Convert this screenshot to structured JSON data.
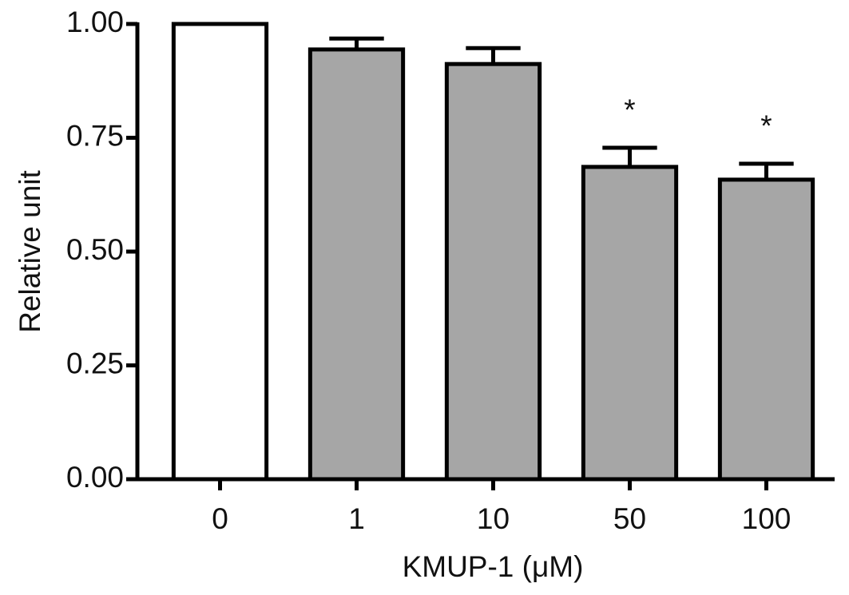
{
  "chart_data": {
    "type": "bar",
    "y_label": "Relative unit",
    "x_label": "KMUP-1 (μM)",
    "categories": [
      "0",
      "1",
      "10",
      "50",
      "100"
    ],
    "values": [
      1.0,
      0.944,
      0.912,
      0.686,
      0.658
    ],
    "errors": [
      null,
      0.024,
      0.035,
      0.042,
      0.035
    ],
    "annotations": [
      null,
      null,
      null,
      "*",
      "*"
    ],
    "colors": [
      "#ffffff",
      "#a6a6a6",
      "#a6a6a6",
      "#a6a6a6",
      "#a6a6a6"
    ],
    "ylim": [
      0,
      1.0
    ],
    "yticks": [
      {
        "value": 0,
        "label": "0.00"
      },
      {
        "value": 0.25,
        "label": "0.25"
      },
      {
        "value": 0.5,
        "label": "0.50"
      },
      {
        "value": 0.75,
        "label": "0.75"
      },
      {
        "value": 1.0,
        "label": "1.00"
      }
    ],
    "grid": false
  }
}
